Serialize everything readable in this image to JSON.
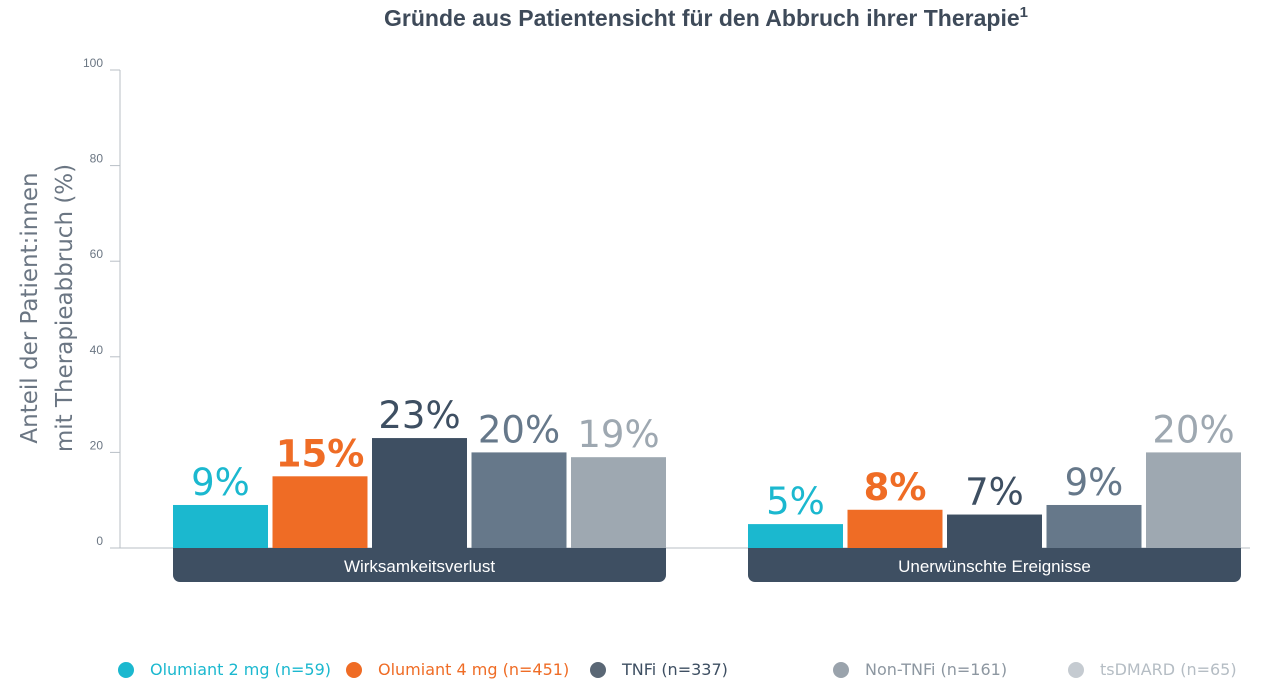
{
  "chart_data": {
    "type": "bar",
    "title": "Gründe aus Patientensicht für den Abbruch ihrer Therapie",
    "title_superscript": "1",
    "ylabel_lines": [
      "Anteil der Patient:innen",
      "mit Therapieabbruch (%)"
    ],
    "ylim": [
      0,
      100
    ],
    "yticks": [
      "0",
      "20",
      "40",
      "60",
      "80",
      "100"
    ],
    "categories": [
      "Wirksamkeitsverlust",
      "Unerwünschte Ereignisse"
    ],
    "series": [
      {
        "name": "Olumiant 2 mg (n=59)",
        "color": "#1bb8cf",
        "values": [
          9,
          5
        ],
        "labels": [
          "9%",
          "5%"
        ],
        "bold": false
      },
      {
        "name": "Olumiant 4 mg (n=451)",
        "color": "#ef6c25",
        "values": [
          15,
          8
        ],
        "labels": [
          "15%",
          "8%"
        ],
        "bold": true
      },
      {
        "name": "TNFi (n=337)",
        "color": "#3e4f62",
        "values": [
          23,
          7
        ],
        "labels": [
          "23%",
          "7%"
        ],
        "bold": false
      },
      {
        "name": "Non-TNFi (n=161)",
        "color": "#66788a",
        "values": [
          20,
          9
        ],
        "labels": [
          "20%",
          "9%"
        ],
        "bold": false
      },
      {
        "name": "tsDMARD (n=65)",
        "color": "#9ea8b1",
        "values": [
          19,
          20
        ],
        "labels": [
          "19%",
          "20%"
        ],
        "bold": false
      }
    ],
    "legend_text_colors": [
      "#1bb8cf",
      "#ef6c25",
      "#3e4f62",
      "#8d97a1",
      "#b5bdc4"
    ],
    "legend_dot_colors": [
      "#1bb8cf",
      "#ef6c25",
      "#5a6775",
      "#9aa3ac",
      "#c5cbd1"
    ],
    "category_band_color": "#3e4f62",
    "grid": false,
    "legend_position": "bottom"
  }
}
